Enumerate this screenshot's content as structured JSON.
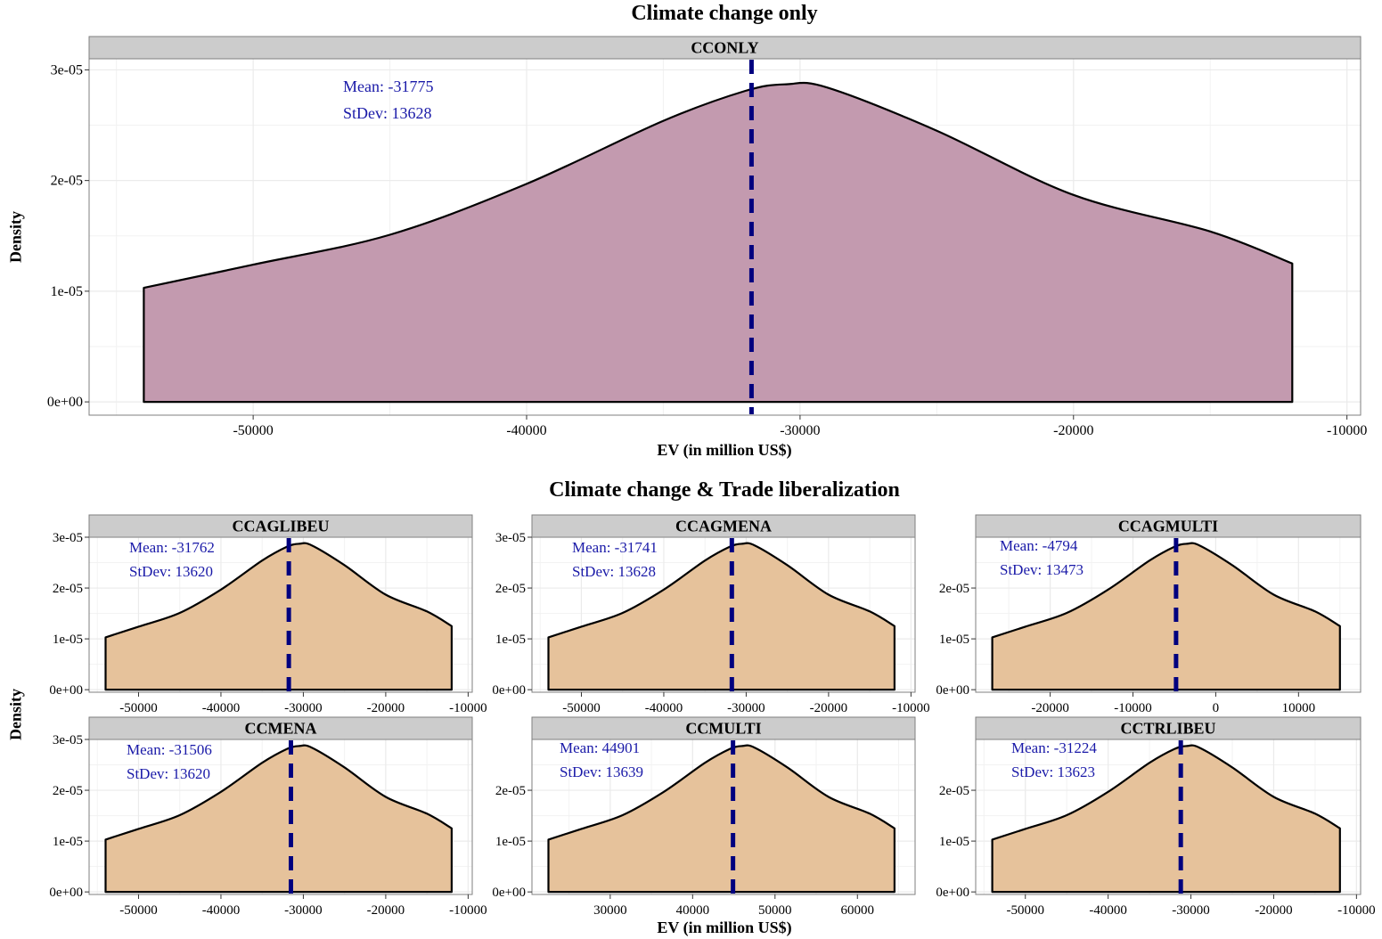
{
  "sections": {
    "top_title": "Climate change only",
    "bottom_title": "Climate change & Trade liberalization"
  },
  "axis_labels": {
    "x": "EV (in million US$)",
    "y": "Density"
  },
  "colors": {
    "top_fill": "#c39aaf",
    "bottom_fill": "#e6c29b",
    "mean_line": "#00007f",
    "stat_text": "#1a1aa8",
    "strip_bg": "#cccccc",
    "grid": "#ebebeb"
  },
  "chart_data": [
    {
      "type": "area",
      "panel": "CCONLY",
      "xlim": [
        -56000,
        -9500
      ],
      "ylim": [
        -1.2e-06,
        3.1e-05
      ],
      "xticks": [
        -50000,
        -40000,
        -30000,
        -20000,
        -10000
      ],
      "yticks": [
        0,
        1e-05,
        2e-05,
        3e-05
      ],
      "ytick_labels": [
        "0e+00",
        "1e-05",
        "2e-05",
        "3e-05"
      ],
      "curve": [
        [
          -54000,
          1.03e-05
        ],
        [
          -50000,
          1.24e-05
        ],
        [
          -45000,
          1.51e-05
        ],
        [
          -40000,
          1.97e-05
        ],
        [
          -35000,
          2.54e-05
        ],
        [
          -32000,
          2.81e-05
        ],
        [
          -30500,
          2.87e-05
        ],
        [
          -29000,
          2.84e-05
        ],
        [
          -25000,
          2.45e-05
        ],
        [
          -20000,
          1.87e-05
        ],
        [
          -15000,
          1.54e-05
        ],
        [
          -12000,
          1.25e-05
        ]
      ],
      "mean": -31775,
      "stats": [
        "Mean:  -31775",
        "StDev:  13628"
      ]
    },
    {
      "type": "area",
      "panel": "CCAGLIBEU",
      "xlim": [
        -56000,
        -9500
      ],
      "ylim": [
        -5e-07,
        3e-05
      ],
      "xticks": [
        -50000,
        -40000,
        -30000,
        -20000,
        -10000
      ],
      "yticks": [
        0,
        1e-05,
        2e-05,
        3e-05
      ],
      "ytick_labels": [
        "0e+00",
        "1e-05",
        "2e-05",
        "3e-05"
      ],
      "curve": [
        [
          -54000,
          1.03e-05
        ],
        [
          -50000,
          1.24e-05
        ],
        [
          -45000,
          1.51e-05
        ],
        [
          -40000,
          1.97e-05
        ],
        [
          -35000,
          2.54e-05
        ],
        [
          -32000,
          2.81e-05
        ],
        [
          -30500,
          2.87e-05
        ],
        [
          -29000,
          2.84e-05
        ],
        [
          -25000,
          2.45e-05
        ],
        [
          -20000,
          1.87e-05
        ],
        [
          -15000,
          1.54e-05
        ],
        [
          -12000,
          1.25e-05
        ]
      ],
      "mean": -31762,
      "stats": [
        "Mean:  -31762",
        "StDev:  13620"
      ]
    },
    {
      "type": "area",
      "panel": "CCAGMENA",
      "xlim": [
        -56000,
        -9500
      ],
      "ylim": [
        -5e-07,
        3e-05
      ],
      "xticks": [
        -50000,
        -40000,
        -30000,
        -20000,
        -10000
      ],
      "yticks": [
        0,
        1e-05,
        2e-05,
        3e-05
      ],
      "ytick_labels": [
        "0e+00",
        "1e-05",
        "2e-05",
        "3e-05"
      ],
      "curve": [
        [
          -54000,
          1.03e-05
        ],
        [
          -50000,
          1.24e-05
        ],
        [
          -45000,
          1.51e-05
        ],
        [
          -40000,
          1.97e-05
        ],
        [
          -35000,
          2.54e-05
        ],
        [
          -32000,
          2.81e-05
        ],
        [
          -30500,
          2.87e-05
        ],
        [
          -29000,
          2.84e-05
        ],
        [
          -25000,
          2.45e-05
        ],
        [
          -20000,
          1.87e-05
        ],
        [
          -15000,
          1.54e-05
        ],
        [
          -12000,
          1.25e-05
        ]
      ],
      "mean": -31741,
      "stats": [
        "Mean:  -31741",
        "StDev:  13628"
      ]
    },
    {
      "type": "area",
      "panel": "CCAGMULTI",
      "xlim": [
        -29000,
        17500
      ],
      "ylim": [
        -5e-07,
        3e-05
      ],
      "xticks": [
        -20000,
        -10000,
        0,
        10000
      ],
      "yticks": [
        0,
        1e-05,
        2e-05
      ],
      "ytick_labels": [
        "0e+00",
        "1e-05",
        "2e-05"
      ],
      "curve": [
        [
          -27000,
          1.03e-05
        ],
        [
          -23000,
          1.24e-05
        ],
        [
          -18000,
          1.51e-05
        ],
        [
          -13000,
          1.97e-05
        ],
        [
          -8000,
          2.54e-05
        ],
        [
          -5000,
          2.81e-05
        ],
        [
          -3500,
          2.87e-05
        ],
        [
          -2000,
          2.84e-05
        ],
        [
          2000,
          2.45e-05
        ],
        [
          7000,
          1.87e-05
        ],
        [
          12000,
          1.54e-05
        ],
        [
          15000,
          1.25e-05
        ]
      ],
      "mean": -4794,
      "stats": [
        "Mean:  -4794",
        "StDev:  13473"
      ]
    },
    {
      "type": "area",
      "panel": "CCMENA",
      "xlim": [
        -56000,
        -9500
      ],
      "ylim": [
        -5e-07,
        3e-05
      ],
      "xticks": [
        -50000,
        -40000,
        -30000,
        -20000,
        -10000
      ],
      "yticks": [
        0,
        1e-05,
        2e-05,
        3e-05
      ],
      "ytick_labels": [
        "0e+00",
        "1e-05",
        "2e-05",
        "3e-05"
      ],
      "curve": [
        [
          -54000,
          1.03e-05
        ],
        [
          -50000,
          1.24e-05
        ],
        [
          -45000,
          1.51e-05
        ],
        [
          -40000,
          1.97e-05
        ],
        [
          -35000,
          2.54e-05
        ],
        [
          -32000,
          2.81e-05
        ],
        [
          -30500,
          2.87e-05
        ],
        [
          -29000,
          2.84e-05
        ],
        [
          -25000,
          2.45e-05
        ],
        [
          -20000,
          1.87e-05
        ],
        [
          -15000,
          1.54e-05
        ],
        [
          -12000,
          1.25e-05
        ]
      ],
      "mean": -31506,
      "stats": [
        "Mean:  -31506",
        "StDev:  13620"
      ]
    },
    {
      "type": "area",
      "panel": "CCMULTI",
      "xlim": [
        20500,
        67000
      ],
      "ylim": [
        -5e-07,
        3e-05
      ],
      "xticks": [
        30000,
        40000,
        50000,
        60000
      ],
      "yticks": [
        0,
        1e-05,
        2e-05
      ],
      "ytick_labels": [
        "0e+00",
        "1e-05",
        "2e-05"
      ],
      "curve": [
        [
          22500,
          1.03e-05
        ],
        [
          26500,
          1.24e-05
        ],
        [
          31500,
          1.51e-05
        ],
        [
          36500,
          1.97e-05
        ],
        [
          41500,
          2.54e-05
        ],
        [
          44500,
          2.81e-05
        ],
        [
          46000,
          2.87e-05
        ],
        [
          47500,
          2.84e-05
        ],
        [
          51500,
          2.45e-05
        ],
        [
          56500,
          1.87e-05
        ],
        [
          61500,
          1.54e-05
        ],
        [
          64500,
          1.25e-05
        ]
      ],
      "mean": 44901,
      "stats": [
        "Mean:  44901",
        "StDev:  13639"
      ]
    },
    {
      "type": "area",
      "panel": "CCTRLIBEU",
      "xlim": [
        -56000,
        -9500
      ],
      "ylim": [
        -5e-07,
        3e-05
      ],
      "xticks": [
        -50000,
        -40000,
        -30000,
        -20000,
        -10000
      ],
      "yticks": [
        0,
        1e-05,
        2e-05
      ],
      "ytick_labels": [
        "0e+00",
        "1e-05",
        "2e-05"
      ],
      "curve": [
        [
          -54000,
          1.03e-05
        ],
        [
          -50000,
          1.24e-05
        ],
        [
          -45000,
          1.51e-05
        ],
        [
          -40000,
          1.97e-05
        ],
        [
          -35000,
          2.54e-05
        ],
        [
          -32000,
          2.81e-05
        ],
        [
          -30500,
          2.87e-05
        ],
        [
          -29000,
          2.84e-05
        ],
        [
          -25000,
          2.45e-05
        ],
        [
          -20000,
          1.87e-05
        ],
        [
          -15000,
          1.54e-05
        ],
        [
          -12000,
          1.25e-05
        ]
      ],
      "mean": -31224,
      "stats": [
        "Mean:  -31224",
        "StDev:  13623"
      ]
    }
  ]
}
